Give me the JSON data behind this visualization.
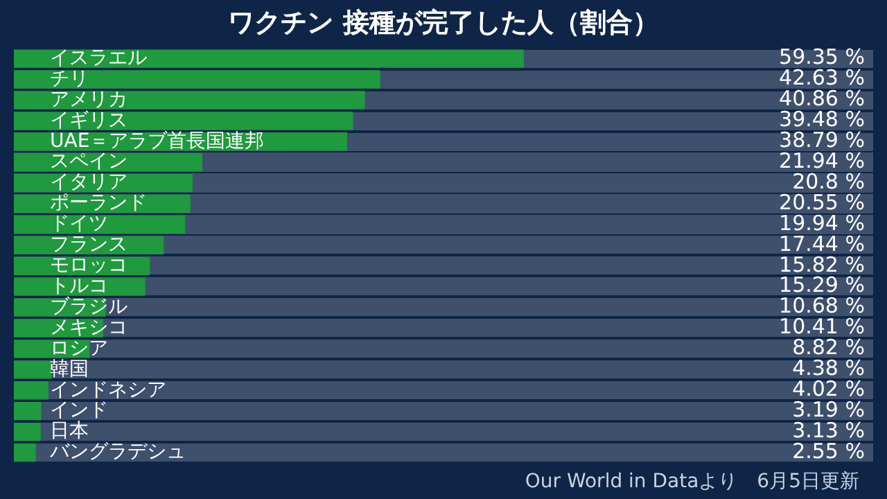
{
  "chart_data": {
    "type": "bar",
    "orientation": "horizontal",
    "title": "ワクチン 接種が完了した人（割合）",
    "categories": [
      "イスラエル",
      "チリ",
      "アメリカ",
      "イギリス",
      "UAE＝アラブ首長国連邦",
      "スペイン",
      "イタリア",
      "ポーランド",
      "ドイツ",
      "フランス",
      "モロッコ",
      "トルコ",
      "ブラジル",
      "メキシコ",
      "ロシア",
      "韓国",
      "インドネシア",
      "インド",
      "日本",
      "バングラデシュ"
    ],
    "values": [
      59.35,
      42.63,
      40.86,
      39.48,
      38.79,
      21.94,
      20.8,
      20.55,
      19.94,
      17.44,
      15.82,
      15.29,
      10.68,
      10.41,
      8.82,
      4.38,
      4.02,
      3.19,
      3.13,
      2.55
    ],
    "value_labels": [
      "59.35 %",
      "42.63 %",
      "40.86 %",
      "39.48 %",
      "38.79 %",
      "21.94 %",
      "20.8 %",
      "20.55 %",
      "19.94 %",
      "17.44 %",
      "15.82 %",
      "15.29 %",
      "10.68 %",
      "10.41 %",
      "8.82 %",
      "4.38 %",
      "4.02 %",
      "3.19 %",
      "3.13 %",
      "2.55 %"
    ],
    "color": "#1f9a3e",
    "xlim": [
      0,
      100
    ],
    "tick_labels": "y",
    "legend": false,
    "annotations": [
      "Our World in Dataより　6月5日更新"
    ]
  }
}
